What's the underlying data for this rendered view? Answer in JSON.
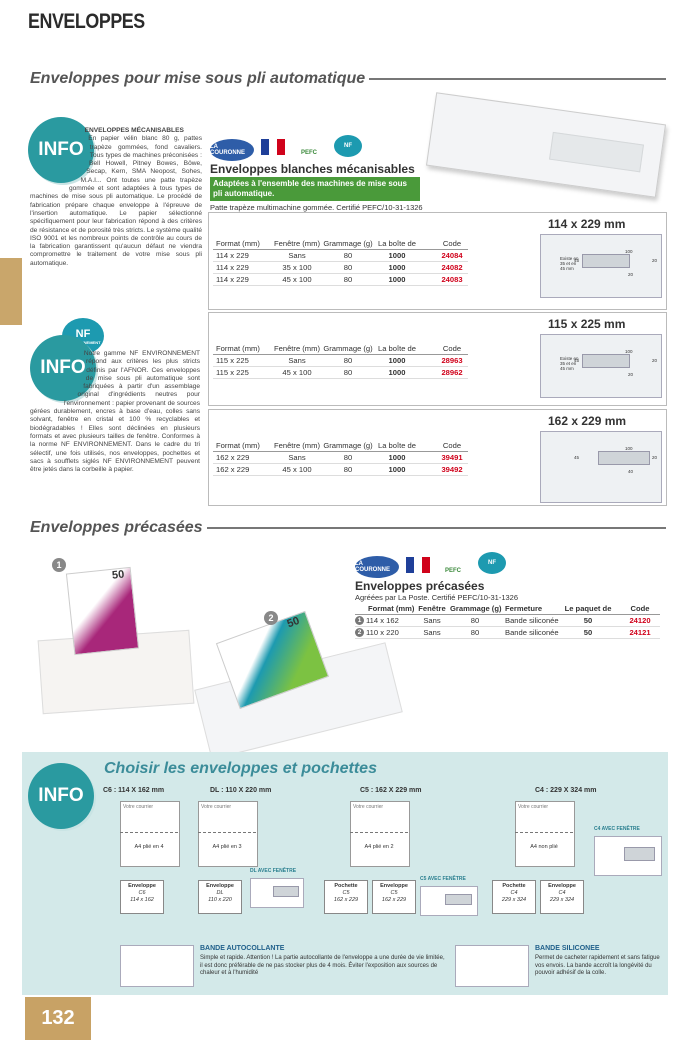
{
  "header": {
    "title": "ENVELOPPES"
  },
  "section1": {
    "title": "Enveloppes pour mise sous pli automatique"
  },
  "info1": {
    "badge": "INFO",
    "title": "ENVELOPPES MÉCANISABLES",
    "text": "En papier vélin blanc 80 g, pattes trapèze gommées, fond cavaliers. Tous types de machines préconisées : Bell Howell, Pitney Bowes, Böwe, Secap, Kern, SMA Neopost, Sohes, M.A.I... Ont toutes une patte trapèze gommée et sont adaptées à tous types de machines de mise sous pli automatique. Le procédé de fabrication prépare chaque enveloppe à l'épreuve de l'insertion automatique. Le papier sélectionné spécifiquement pour leur fabrication répond à des critères de résistance et de porosité très stricts. Le système qualité ISO 9001 et les nombreux points de contrôle au cours de la fabrication garantissent qu'aucun défaut ne viendra compromettre le traitement de votre mise sous pli automatique."
  },
  "product1": {
    "logos": [
      "LA COURONNE",
      "PEFC",
      "NF"
    ],
    "name": "Enveloppes blanches mécanisables",
    "highlight": "Adaptées à l'ensemble des machines de mise sous pli automatique.",
    "note": "Patte trapèze multimachine gommée. Certifié PEFC/10-31-1326",
    "tables": [
      {
        "size": "114 x 229 mm",
        "columns": [
          "Format (mm)",
          "Fenêtre (mm)",
          "Grammage (g)",
          "La boîte de",
          "Code"
        ],
        "rows": [
          [
            "114 x 229",
            "Sans",
            "80",
            "1000",
            "24084"
          ],
          [
            "114 x 229",
            "35 x 100",
            "80",
            "1000",
            "24082"
          ],
          [
            "114 x 229",
            "45 x 100",
            "80",
            "1000",
            "24083"
          ]
        ],
        "diagram": {
          "note": "Existe en 35 et en 45 mm",
          "labels": [
            "100",
            "45",
            "20",
            "20"
          ]
        }
      },
      {
        "size": "115 x 225 mm",
        "columns": [
          "Format (mm)",
          "Fenêtre (mm)",
          "Grammage (g)",
          "La boîte de",
          "Code"
        ],
        "rows": [
          [
            "115 x 225",
            "Sans",
            "80",
            "1000",
            "28963"
          ],
          [
            "115 x 225",
            "45 x 100",
            "80",
            "1000",
            "28962"
          ]
        ],
        "diagram": {
          "note": "Existe en 35 et en 45 mm",
          "labels": [
            "100",
            "45",
            "20",
            "20"
          ]
        }
      },
      {
        "size": "162 x 229 mm",
        "columns": [
          "Format (mm)",
          "Fenêtre (mm)",
          "Grammage (g)",
          "La boîte de",
          "Code"
        ],
        "rows": [
          [
            "162 x 229",
            "Sans",
            "80",
            "1000",
            "39491"
          ],
          [
            "162 x 229",
            "45 x 100",
            "80",
            "1000",
            "39492"
          ]
        ],
        "diagram": {
          "labels": [
            "100",
            "45",
            "20",
            "40"
          ]
        }
      }
    ]
  },
  "info2": {
    "badge": "INFO",
    "logo": "NF",
    "logo_sub": "ENVIRONNEMENT",
    "text": "Notre gamme NF ENVIRONNEMENT répond aux critères les plus stricts définis par l'AFNOR. Ces enveloppes de mise sous pli automatique sont fabriquées à partir d'un assemblage original d'ingrédients neutres pour l'environnement : papier provenant de sources gérées durablement, encres à base d'eau, colles sans solvant, fenêtre en cristal et 100 % recyclables et biodégradables ! Elles sont déclinées en plusieurs formats et avec plusieurs tailles de fenêtre. Conformes à la norme NF ENVIRONNEMENT. Dans le cadre du tri sélectif, une fois utilisés, nos enveloppes, pochettes et sacs à soufflets siglés NF ENVIRONNEMENT peuvent être jetés dans la corbeille à papier."
  },
  "section2": {
    "title": "Enveloppes précasées"
  },
  "product2": {
    "photos": [
      "1",
      "2"
    ],
    "pack_label": "50",
    "logos": [
      "LA COURONNE",
      "PEFC",
      "NF"
    ],
    "name": "Enveloppes précasées",
    "note": "Agréées par La Poste. Certifié PEFC/10-31-1326",
    "columns": [
      "Format (mm)",
      "Fenêtre",
      "Grammage (g)",
      "Fermeture",
      "Le paquet de",
      "Code"
    ],
    "rows": [
      {
        "badge": "1",
        "cells": [
          "114 x 162",
          "Sans",
          "80",
          "Bande siliconée",
          "50",
          "24120"
        ]
      },
      {
        "badge": "2",
        "cells": [
          "110 x 220",
          "Sans",
          "80",
          "Bande siliconée",
          "50",
          "24121"
        ]
      }
    ]
  },
  "guide": {
    "badge": "INFO",
    "title": "Choisir les enveloppes et pochettes",
    "formats": [
      {
        "title": "C6 : 114 X 162 mm",
        "sheet": "Votre courrier",
        "fold": "A4 plié en 4",
        "items": [
          {
            "kind": "Enveloppe",
            "name": "C6",
            "size": "114 x 162"
          }
        ]
      },
      {
        "title": "DL : 110 X 220 mm",
        "sheet": "Votre courrier",
        "fold": "A4 plié en 3",
        "window": "DL AVEC FENÊTRE",
        "items": [
          {
            "kind": "Enveloppe",
            "name": "DL",
            "size": "110 x 220"
          }
        ]
      },
      {
        "title": "C5 : 162 X 229 mm",
        "sheet": "Votre courrier",
        "fold": "A4 plié en 2",
        "window": "C5 AVEC FENÊTRE",
        "items": [
          {
            "kind": "Pochette",
            "name": "C5",
            "size": "162 x 229"
          },
          {
            "kind": "Enveloppe",
            "name": "C5",
            "size": "162 x 229"
          }
        ]
      },
      {
        "title": "C4 : 229 X 324 mm",
        "sheet": "Votre courrier",
        "fold": "A4 non plié",
        "window": "C4 AVEC FENÊTRE",
        "items": [
          {
            "kind": "Pochette",
            "name": "C4",
            "size": "229 x 324"
          },
          {
            "kind": "Enveloppe",
            "name": "C4",
            "size": "229 x 324"
          }
        ]
      }
    ],
    "bands": [
      {
        "title": "BANDE AUTOCOLLANTE",
        "text": "Simple et rapide. Attention ! La partie autocollante de l'enveloppe a une durée de vie limitée, il est donc préférable de ne pas stocker plus de 4 mois. Éviter l'exposition aux sources de chaleur et à l'humidité"
      },
      {
        "title": "BANDE SILICONEE",
        "text": "Permet de cacheter rapidement et sans fatigue vos envois. La bande accroît la longévité du pouvoir adhésif de la colle."
      }
    ]
  },
  "page_number": "132"
}
